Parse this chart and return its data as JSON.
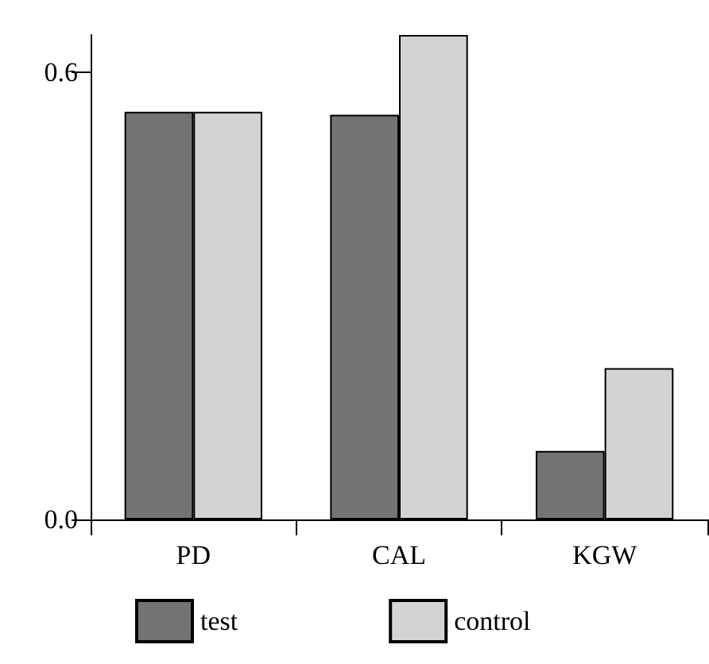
{
  "chart_data": {
    "type": "bar",
    "categories": [
      "PD",
      "CAL",
      "KGW"
    ],
    "series": [
      {
        "name": "test",
        "color": "#737373",
        "values": [
          0.547,
          0.543,
          0.092
        ]
      },
      {
        "name": "control",
        "color": "#d3d3d3",
        "values": [
          0.547,
          0.65,
          0.203
        ]
      }
    ],
    "ylim": [
      0,
      0.65
    ],
    "yticks": [
      {
        "value": 0,
        "label": "0.0"
      },
      {
        "value": 0.6,
        "label": "0.6"
      }
    ],
    "grid": false,
    "legend": "bottom"
  }
}
